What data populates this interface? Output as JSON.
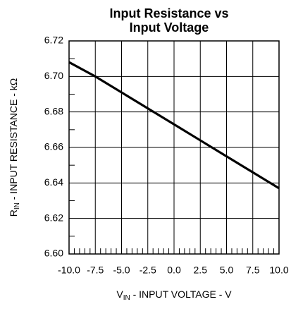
{
  "chart_data": {
    "type": "line",
    "title": [
      "Input Resistance vs",
      "Input Voltage"
    ],
    "xlabel": {
      "main": "V",
      "sub": "IN",
      "rest": " - INPUT VOLTAGE - V"
    },
    "ylabel": {
      "main": "R",
      "sub": "IN",
      "rest": " - INPUT RESISTANCE - kΩ"
    },
    "x": [
      -10,
      -7.5,
      -5,
      -2.5,
      0,
      2.5,
      5,
      7.5,
      10
    ],
    "series": [
      {
        "color": "#000000",
        "values": [
          6.708,
          6.7,
          6.691,
          6.682,
          6.673,
          6.664,
          6.655,
          6.646,
          6.637
        ]
      }
    ],
    "xlim": [
      -10,
      10
    ],
    "ylim": [
      6.6,
      6.72
    ],
    "xticks": [
      {
        "value": -10,
        "label": "-10.0"
      },
      {
        "value": -7.5,
        "label": "-7.5"
      },
      {
        "value": -5,
        "label": "-5.0"
      },
      {
        "value": -2.5,
        "label": "-2.5"
      },
      {
        "value": 0,
        "label": "0.0"
      },
      {
        "value": 2.5,
        "label": "2.5"
      },
      {
        "value": 5,
        "label": "5.0"
      },
      {
        "value": 7.5,
        "label": "7.5"
      },
      {
        "value": 10,
        "label": "10.0"
      }
    ],
    "yticks": [
      {
        "value": 6.6,
        "label": "6.60"
      },
      {
        "value": 6.62,
        "label": "6.62"
      },
      {
        "value": 6.64,
        "label": "6.64"
      },
      {
        "value": 6.66,
        "label": "6.66"
      },
      {
        "value": 6.68,
        "label": "6.68"
      },
      {
        "value": 6.7,
        "label": "6.70"
      },
      {
        "value": 6.72,
        "label": "6.72"
      }
    ],
    "xticks_minor": [
      -9.5,
      -9,
      -8.5,
      -8,
      -7,
      -6.5,
      -6,
      -5.5,
      -4.5,
      -4,
      -3.5,
      -3,
      -2,
      -1.5,
      -1,
      -0.5,
      0.5,
      1,
      1.5,
      2,
      3,
      3.5,
      4,
      4.5,
      5.5,
      6,
      6.5,
      7,
      8,
      8.5,
      9,
      9.5
    ],
    "yticks_minor": [
      6.61,
      6.63,
      6.65,
      6.67,
      6.69,
      6.71
    ],
    "grid": true
  }
}
